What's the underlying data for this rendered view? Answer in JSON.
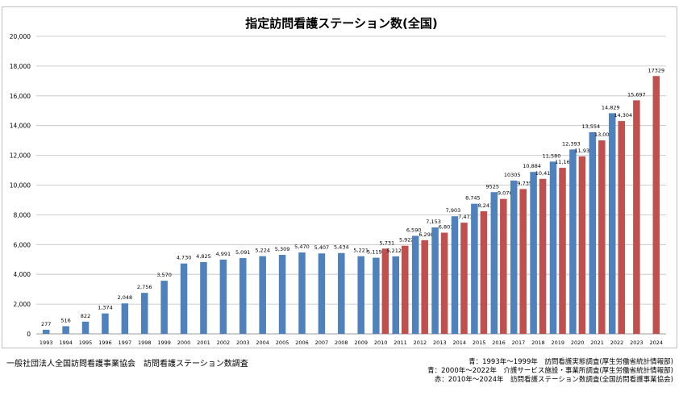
{
  "chart_data": {
    "type": "bar",
    "title": "指定訪問看護ステーション数(全国)",
    "xlabel": "",
    "ylabel": "",
    "ylim": [
      0,
      20000
    ],
    "yticks": [
      0,
      2000,
      4000,
      6000,
      8000,
      10000,
      12000,
      14000,
      16000,
      18000,
      20000
    ],
    "ytick_labels": [
      "0",
      "2,000",
      "4,000",
      "6,000",
      "8,000",
      "10,000",
      "12,000",
      "14,000",
      "16,000",
      "18,000",
      "20,000"
    ],
    "grid": true,
    "colors": {
      "blue": "#4f81bd",
      "red": "#c0504d"
    },
    "categories": [
      "1993",
      "1994",
      "1995",
      "1996",
      "1997",
      "1998",
      "1999",
      "2000",
      "2001",
      "2002",
      "2003",
      "2004",
      "2005",
      "2006",
      "2007",
      "2008",
      "2009",
      "2010",
      "2011",
      "2012",
      "2013",
      "2014",
      "2015",
      "2016",
      "2017",
      "2018",
      "2019",
      "2020",
      "2021",
      "2022",
      "2023",
      "2024"
    ],
    "series": [
      {
        "color": "blue",
        "values": [
          277,
          516,
          822,
          1374,
          2048,
          2756,
          3570,
          4730,
          4825,
          4991,
          5091,
          5224,
          5309,
          5470,
          5407,
          5434,
          5221,
          5119,
          5212,
          6590,
          7153,
          7903,
          8745,
          9525,
          10305,
          10884,
          11580,
          12393,
          13554,
          14829,
          null,
          null
        ],
        "labels": [
          "277",
          "516",
          "822",
          "1,374",
          "2,048",
          "2,756",
          "3,570",
          "4,730",
          "4,825",
          "4,991",
          "5,091",
          "5,224",
          "5,309",
          "5,470",
          "5,407",
          "5,434",
          "5,221",
          "5,119",
          "5,212",
          "6,590",
          "7,153",
          "7,903",
          "8,745",
          "9525",
          "10305",
          "10,884",
          "11,580",
          "12,393",
          "13,554",
          "14,829",
          "",
          ""
        ]
      },
      {
        "color": "red",
        "values": [
          null,
          null,
          null,
          null,
          null,
          null,
          null,
          null,
          null,
          null,
          null,
          null,
          null,
          null,
          null,
          null,
          null,
          5731,
          5922,
          6298,
          6801,
          7473,
          8241,
          9070,
          9735,
          10418,
          11161,
          11931,
          13003,
          14304,
          15697,
          17329
        ],
        "labels": [
          "",
          "",
          "",
          "",
          "",
          "",
          "",
          "",
          "",
          "",
          "",
          "",
          "",
          "",
          "",
          "",
          "",
          "5,731",
          "5,922",
          "6,298",
          "6,801",
          "7,473",
          "8,241",
          "9,070",
          "9,735",
          "10,418",
          "11,161",
          "11,931",
          "13,003",
          "14,304",
          "15,697",
          "17329"
        ]
      }
    ]
  },
  "footer": {
    "left": "一般社団法人全国訪問看護事業協会　訪問看護ステーション数調査",
    "sources": [
      "青：1993年～1999年　訪問看護実態調査(厚生労働省統計情報部)",
      "青：2000年～2022年　介護サービス施設・事業所調査(厚生労働省統計情報部)",
      "赤：2010年～2024年　訪問看護ステーション数調査(全国訪問看護事業協会)"
    ]
  }
}
